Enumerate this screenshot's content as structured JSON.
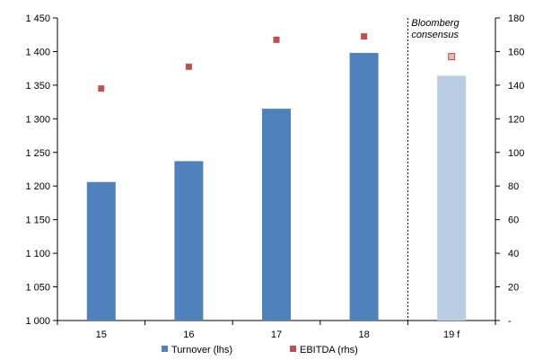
{
  "chart_data": {
    "type": "bar",
    "categories": [
      "15",
      "16",
      "17",
      "18",
      "19 f"
    ],
    "series": [
      {
        "name": "Turnover (lhs)",
        "kind": "bar",
        "axis": "left",
        "values": [
          1206,
          1237,
          1315,
          1398,
          1364
        ],
        "colors": [
          "#4f81bd",
          "#4f81bd",
          "#4f81bd",
          "#4f81bd",
          "#b9cde5"
        ]
      },
      {
        "name": "EBITDA (rhs)",
        "kind": "marker",
        "axis": "right",
        "values": [
          138,
          151,
          167,
          169,
          157
        ],
        "color": "#c0504d",
        "forecast_color": "#e6b9b8"
      }
    ],
    "left_axis": {
      "range": [
        1000,
        1450
      ],
      "ticks": [
        {
          "value": 1450,
          "label": "1 450"
        },
        {
          "value": 1400,
          "label": "1 400"
        },
        {
          "value": 1350,
          "label": "1 350"
        },
        {
          "value": 1300,
          "label": "1 300"
        },
        {
          "value": 1250,
          "label": "1 250"
        },
        {
          "value": 1200,
          "label": "1 200"
        },
        {
          "value": 1150,
          "label": "1 150"
        },
        {
          "value": 1100,
          "label": "1 100"
        },
        {
          "value": 1050,
          "label": "1 050"
        },
        {
          "value": 1000,
          "label": "1 000"
        }
      ]
    },
    "right_axis": {
      "range": [
        0,
        180
      ],
      "ticks": [
        {
          "value": 180,
          "label": "180"
        },
        {
          "value": 160,
          "label": "160"
        },
        {
          "value": 140,
          "label": "140"
        },
        {
          "value": 120,
          "label": "120"
        },
        {
          "value": 100,
          "label": "100"
        },
        {
          "value": 80,
          "label": "80"
        },
        {
          "value": 60,
          "label": "60"
        },
        {
          "value": 40,
          "label": "40"
        },
        {
          "value": 20,
          "label": "20"
        },
        {
          "value": 0,
          "label": "-"
        }
      ]
    },
    "annotation": {
      "lines": [
        "Bloomberg",
        "consensus"
      ],
      "divider_after_category": 3
    },
    "legend_position": "bottom",
    "grid": false,
    "title": "",
    "xlabel": "",
    "ylabel": ""
  }
}
